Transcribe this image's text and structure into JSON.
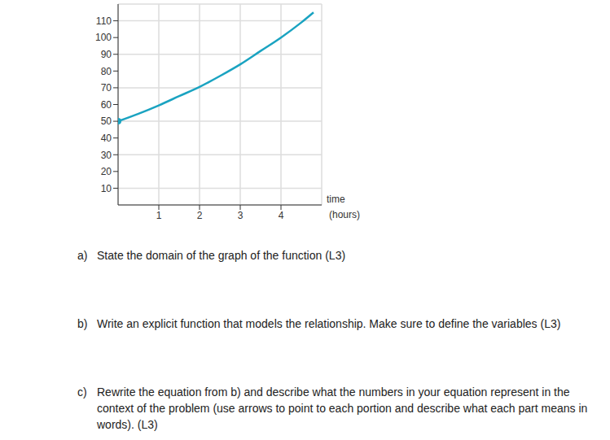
{
  "chart_data": {
    "type": "line",
    "x_label": "time (hours)",
    "x": [
      0,
      0.5,
      1,
      1.5,
      2,
      2.5,
      3,
      3.5,
      4,
      4.5,
      4.8
    ],
    "values": [
      50,
      54.5,
      59.5,
      65,
      70.5,
      77,
      84,
      92,
      100,
      109,
      115
    ],
    "color": "#1aa3c1",
    "marker": "start",
    "xlim": [
      0,
      5
    ],
    "xticks": [
      1,
      2,
      3,
      4
    ],
    "ylim": [
      0,
      120
    ],
    "yticks": [
      10,
      20,
      30,
      40,
      50,
      60,
      70,
      80,
      90,
      100,
      110
    ],
    "grid": true
  },
  "questions": [
    {
      "label": "a)",
      "text": "State the domain of the graph of the function (L3)"
    },
    {
      "label": "b)",
      "text": "Write an explicit function that models the relationship.  Make sure to define the variables (L3)"
    },
    {
      "label": "c)",
      "text": "Rewrite the equation from b) and describe what the numbers in your equation represent in the context of the problem (use arrows to point to each portion and describe what each part means in words).  (L3)"
    }
  ]
}
